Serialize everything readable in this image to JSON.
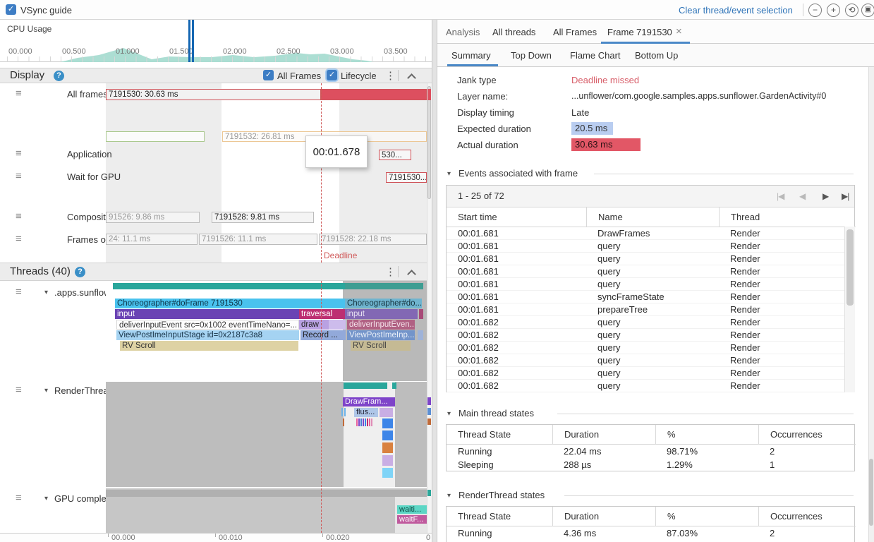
{
  "icons": {
    "check": "✓",
    "kebab": "⋮",
    "help": "?",
    "handle": "≡",
    "tri_down": "▾",
    "tri_side": "▾",
    "close": "×",
    "minus": "−",
    "plus": "+",
    "reset": "⟲",
    "fit": "▣",
    "pag_first": "|◀",
    "pag_prev": "◀",
    "pag_next": "▶",
    "pag_last": "▶|"
  },
  "topbar": {
    "vsync_label": "VSync guide",
    "clear_selection": "Clear thread/event selection"
  },
  "minimap": {
    "title": "CPU Usage",
    "ticks": [
      "00.000",
      "00.500",
      "01.000",
      "01.500",
      "02.000",
      "02.500",
      "03.000",
      "03.500"
    ]
  },
  "display": {
    "title": "Display",
    "all_frames": "All Frames",
    "lifecycle": "Lifecycle",
    "row_labels": [
      "All frames",
      "Application",
      "Wait for GPU",
      "Composition",
      "Frames on display"
    ],
    "bars": {
      "frame1": "7191530: 30.63 ms",
      "frame2": "7191532: 26.81 ms",
      "application": "530...",
      "wait_gpu": "7191530...",
      "comp1": "91526: 9.86 ms",
      "comp2": "7191528: 9.81 ms",
      "fod1": "24: 11.1 ms",
      "fod2": "7191526: 11.1 ms",
      "fod3": "7191528: 22.18 ms"
    },
    "deadline": "Deadline",
    "tooltip": "00:01.678"
  },
  "threads": {
    "title": "Threads (40)",
    "groups": [
      ".apps.sunflower",
      "RenderThread",
      "GPU completion"
    ],
    "sunflower": {
      "choreographer": "Choreographer#doFrame 7191530",
      "input": "input",
      "traversal": "traversal",
      "deliver": "deliverInputEvent src=0x1002 eventTimeNano=...",
      "draw": "draw",
      "viewpost": "ViewPostImeInputStage id=0x2187c3a8",
      "record": "Record ...",
      "rv_scroll": "RV Scroll",
      "choreographer_dim": "Choreographer#do...",
      "input_dim": "input",
      "deliver_dim": "deliverInputEven...",
      "viewpost_dim": "ViewPostImeInp...",
      "rv_scroll_dim": "RV Scroll"
    },
    "render": {
      "drawframes": "DrawFram...",
      "flush": "flus..."
    },
    "gpu": {
      "waiting": "waiti...",
      "waitfence": "waitF..."
    },
    "ruler": [
      "00.000",
      "00.010",
      "00.020",
      "0"
    ]
  },
  "panel": {
    "tabs": {
      "analysis": "Analysis",
      "all_threads": "All threads",
      "all_frames": "All Frames",
      "frame": "Frame 7191530"
    },
    "subtabs": [
      "Summary",
      "Top Down",
      "Flame Chart",
      "Bottom Up"
    ],
    "summary": {
      "jank_label": "Jank type",
      "jank_value": "Deadline missed",
      "layer_label": "Layer name:",
      "layer_value": "...unflower/com.google.samples.apps.sunflower.GardenActivity#0",
      "timing_label": "Display timing",
      "timing_value": "Late",
      "expected_label": "Expected duration",
      "expected_value": "20.5 ms",
      "actual_label": "Actual duration",
      "actual_value": "30.63 ms"
    },
    "events": {
      "title": "Events associated with frame",
      "pagination": "1 - 25 of 72",
      "headers": [
        "Start time",
        "Name",
        "Thread"
      ],
      "rows": [
        [
          "00:01.681",
          "DrawFrames",
          "Render"
        ],
        [
          "00:01.681",
          "query",
          "Render"
        ],
        [
          "00:01.681",
          "query",
          "Render"
        ],
        [
          "00:01.681",
          "query",
          "Render"
        ],
        [
          "00:01.681",
          "query",
          "Render"
        ],
        [
          "00:01.681",
          "syncFrameState",
          "Render"
        ],
        [
          "00:01.681",
          "prepareTree",
          "Render"
        ],
        [
          "00:01.682",
          "query",
          "Render"
        ],
        [
          "00:01.682",
          "query",
          "Render"
        ],
        [
          "00:01.682",
          "query",
          "Render"
        ],
        [
          "00:01.682",
          "query",
          "Render"
        ],
        [
          "00:01.682",
          "query",
          "Render"
        ],
        [
          "00:01.682",
          "query",
          "Render"
        ]
      ]
    },
    "main_states": {
      "title": "Main thread states",
      "headers": [
        "Thread State",
        "Duration",
        "%",
        "Occurrences"
      ],
      "rows": [
        [
          "Running",
          "22.04 ms",
          "98.71%",
          "2"
        ],
        [
          "Sleeping",
          "288 µs",
          "1.29%",
          "1"
        ]
      ]
    },
    "render_states": {
      "title": "RenderThread states",
      "headers": [
        "Thread State",
        "Duration",
        "%",
        "Occurrences"
      ],
      "rows": [
        [
          "Running",
          "4.36 ms",
          "87.03%",
          "2"
        ]
      ]
    }
  }
}
